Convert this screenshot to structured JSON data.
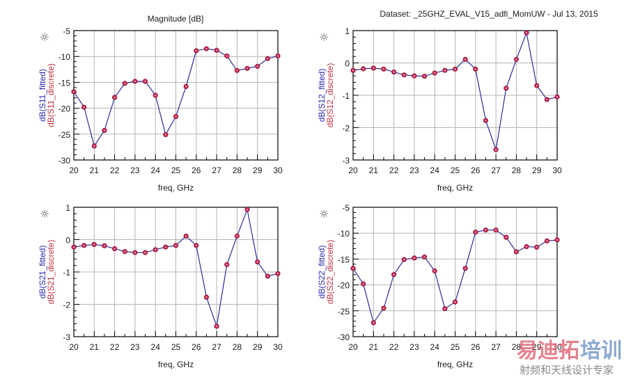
{
  "header": {
    "left_title": "Magnitude [dB]",
    "right_title": "Dataset: _25GHZ_EVAL_V15_adfi_MomUW - Jul 13, 2015"
  },
  "colors": {
    "fitted": "#1a1a8c",
    "discrete": "#c0234e",
    "grid": "#b4b4b4",
    "axis": "#000000",
    "label_fitted": "#2a2ab0",
    "label_discrete": "#c03040",
    "watermark_red": "#e06a78",
    "watermark_blue": "#7a9ac8"
  },
  "icons": {
    "marker_icon": "☼"
  },
  "watermark": {
    "brand": [
      "易迪拓",
      "培训"
    ],
    "slogan": "射频和天线设计专家"
  },
  "chart_data": [
    {
      "id": "s11",
      "type": "line",
      "title": "",
      "xlabel": "freq, GHz",
      "ylabel_fitted": "dB(S11_fitted)",
      "ylabel_discrete": "dB(S11_discrete)",
      "xlim": [
        20,
        30
      ],
      "ylim": [
        -30,
        -5
      ],
      "xticks": [
        20,
        21,
        22,
        23,
        24,
        25,
        26,
        27,
        28,
        29,
        30
      ],
      "yticks": [
        -30,
        -25,
        -20,
        -15,
        -10,
        -5
      ],
      "grid": true,
      "x": [
        20,
        20.5,
        21,
        21.5,
        22,
        22.5,
        23,
        23.5,
        24,
        24.5,
        25,
        25.5,
        26,
        26.5,
        27,
        27.5,
        28,
        28.5,
        29,
        29.5,
        30
      ],
      "series": [
        {
          "name": "dB(S11_fitted)",
          "values": [
            -16.8,
            -19.8,
            -27.3,
            -24.3,
            -17.9,
            -15.2,
            -14.8,
            -14.8,
            -17.5,
            -25.1,
            -21.6,
            -15.8,
            -8.9,
            -8.5,
            -8.8,
            -9.9,
            -12.7,
            -12.3,
            -11.9,
            -10.4,
            -9.9
          ]
        },
        {
          "name": "dB(S11_discrete)",
          "values": [
            -16.8,
            -19.8,
            -27.3,
            -24.3,
            -17.9,
            -15.2,
            -14.8,
            -14.8,
            -17.5,
            -25.1,
            -21.6,
            -15.8,
            -8.9,
            -8.5,
            -8.8,
            -9.9,
            -12.7,
            -12.3,
            -11.9,
            -10.4,
            -9.9
          ]
        }
      ]
    },
    {
      "id": "s12",
      "type": "line",
      "title": "",
      "xlabel": "freq, GHz",
      "ylabel_fitted": "dB(S12_fitted)",
      "ylabel_discrete": "dB(S12_discrete)",
      "xlim": [
        20,
        30
      ],
      "ylim": [
        -3,
        1
      ],
      "xticks": [
        20,
        21,
        22,
        23,
        24,
        25,
        26,
        27,
        28,
        29,
        30
      ],
      "yticks": [
        -3,
        -2,
        -1,
        0,
        1
      ],
      "grid": true,
      "x": [
        20,
        20.5,
        21,
        21.5,
        22,
        22.5,
        23,
        23.5,
        24,
        24.5,
        25,
        25.5,
        26,
        26.5,
        27,
        27.5,
        28,
        28.5,
        29,
        29.5,
        30
      ],
      "series": [
        {
          "name": "dB(S12_fitted)",
          "values": [
            -0.23,
            -0.18,
            -0.16,
            -0.19,
            -0.28,
            -0.37,
            -0.4,
            -0.41,
            -0.31,
            -0.23,
            -0.19,
            0.11,
            -0.19,
            -1.78,
            -2.68,
            -0.78,
            0.11,
            0.93,
            -0.7,
            -1.13,
            -1.05
          ]
        },
        {
          "name": "dB(S12_discrete)",
          "values": [
            -0.23,
            -0.18,
            -0.16,
            -0.19,
            -0.28,
            -0.37,
            -0.4,
            -0.41,
            -0.31,
            -0.23,
            -0.19,
            0.11,
            -0.19,
            -1.78,
            -2.68,
            -0.78,
            0.11,
            0.93,
            -0.7,
            -1.13,
            -1.05
          ]
        }
      ]
    },
    {
      "id": "s21",
      "type": "line",
      "title": "",
      "xlabel": "freq, GHz",
      "ylabel_fitted": "dB(S21_fitted)",
      "ylabel_discrete": "dB(S21_discrete)",
      "xlim": [
        20,
        30
      ],
      "ylim": [
        -3,
        1
      ],
      "xticks": [
        20,
        21,
        22,
        23,
        24,
        25,
        26,
        27,
        28,
        29,
        30
      ],
      "yticks": [
        -3,
        -2,
        -1,
        0,
        1
      ],
      "grid": true,
      "x": [
        20,
        20.5,
        21,
        21.5,
        22,
        22.5,
        23,
        23.5,
        24,
        24.5,
        25,
        25.5,
        26,
        26.5,
        27,
        27.5,
        28,
        28.5,
        29,
        29.5,
        30
      ],
      "series": [
        {
          "name": "dB(S21_fitted)",
          "values": [
            -0.23,
            -0.18,
            -0.15,
            -0.19,
            -0.28,
            -0.37,
            -0.4,
            -0.4,
            -0.31,
            -0.23,
            -0.18,
            0.11,
            -0.18,
            -1.78,
            -2.68,
            -0.77,
            0.11,
            0.93,
            -0.69,
            -1.13,
            -1.05
          ]
        },
        {
          "name": "dB(S21_discrete)",
          "values": [
            -0.23,
            -0.18,
            -0.15,
            -0.19,
            -0.28,
            -0.37,
            -0.4,
            -0.4,
            -0.31,
            -0.23,
            -0.18,
            0.11,
            -0.18,
            -1.78,
            -2.68,
            -0.77,
            0.11,
            0.93,
            -0.69,
            -1.13,
            -1.05
          ]
        }
      ]
    },
    {
      "id": "s22",
      "type": "line",
      "title": "",
      "xlabel": "freq, GHz",
      "ylabel_fitted": "dB(S22_fitted)",
      "ylabel_discrete": "dB(S22_discrete)",
      "xlim": [
        20,
        30
      ],
      "ylim": [
        -30,
        -5
      ],
      "xticks": [
        20,
        21,
        22,
        23,
        24,
        25,
        26,
        27,
        28,
        29,
        30
      ],
      "yticks": [
        -30,
        -25,
        -20,
        -15,
        -10,
        -5
      ],
      "grid": true,
      "x": [
        20,
        20.5,
        21,
        21.5,
        22,
        22.5,
        23,
        23.5,
        24,
        24.5,
        25,
        25.5,
        26,
        26.5,
        27,
        27.5,
        28,
        28.5,
        29,
        29.5,
        30
      ],
      "series": [
        {
          "name": "dB(S22_fitted)",
          "values": [
            -16.8,
            -19.8,
            -27.3,
            -24.5,
            -18.0,
            -15.1,
            -14.8,
            -14.6,
            -17.3,
            -24.6,
            -23.3,
            -16.8,
            -9.8,
            -9.4,
            -9.4,
            -10.8,
            -13.6,
            -12.6,
            -12.7,
            -11.5,
            -11.3
          ]
        },
        {
          "name": "dB(S22_discrete)",
          "values": [
            -16.8,
            -19.8,
            -27.3,
            -24.5,
            -18.0,
            -15.1,
            -14.8,
            -14.6,
            -17.3,
            -24.6,
            -23.3,
            -16.8,
            -9.8,
            -9.4,
            -9.4,
            -10.8,
            -13.6,
            -12.6,
            -12.7,
            -11.5,
            -11.3
          ]
        }
      ]
    }
  ]
}
